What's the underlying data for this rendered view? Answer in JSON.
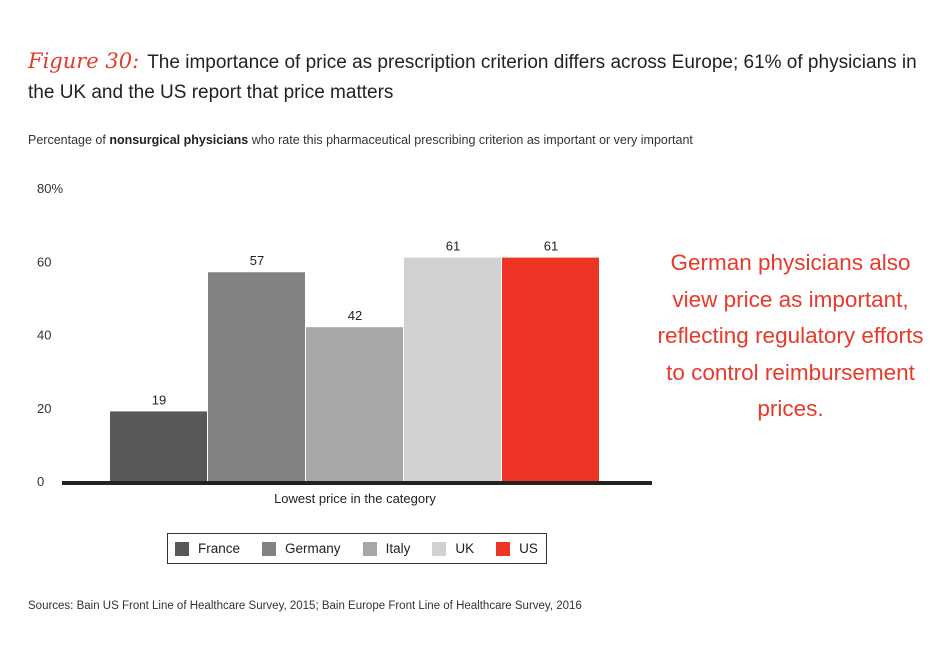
{
  "figure": {
    "label": "Figure 30:",
    "title": "The importance of price as prescription criterion differs across Europe; 61% of physicians in the UK and the US report that price matters",
    "subtitle_pre": "Percentage of ",
    "subtitle_bold": "nonsurgical physicians",
    "subtitle_post": " who rate this pharmaceutical prescribing criterion as important or very important"
  },
  "callout": "German physicians also view price as important, reflecting regulatory efforts to control reimbursement prices.",
  "source": "Sources: Bain US Front Line of Healthcare Survey, 2015; Bain Europe Front Line of Healthcare Survey, 2016",
  "chart_data": {
    "type": "bar",
    "categories": [
      "Lowest price in the category"
    ],
    "series": [
      {
        "name": "France",
        "values": [
          19
        ],
        "color": "#58585a"
      },
      {
        "name": "Germany",
        "values": [
          57
        ],
        "color": "#828284"
      },
      {
        "name": "Italy",
        "values": [
          42
        ],
        "color": "#a7a7a9"
      },
      {
        "name": "UK",
        "values": [
          61
        ],
        "color": "#d1d1d3"
      },
      {
        "name": "US",
        "values": [
          61
        ],
        "color": "#ee3424"
      }
    ],
    "ylim": [
      0,
      80
    ],
    "yticks": [
      "0",
      "20",
      "40",
      "60",
      "80%"
    ],
    "yticks_values": [
      0,
      20,
      40,
      60,
      80
    ],
    "grid": false,
    "legend": "bottom"
  }
}
